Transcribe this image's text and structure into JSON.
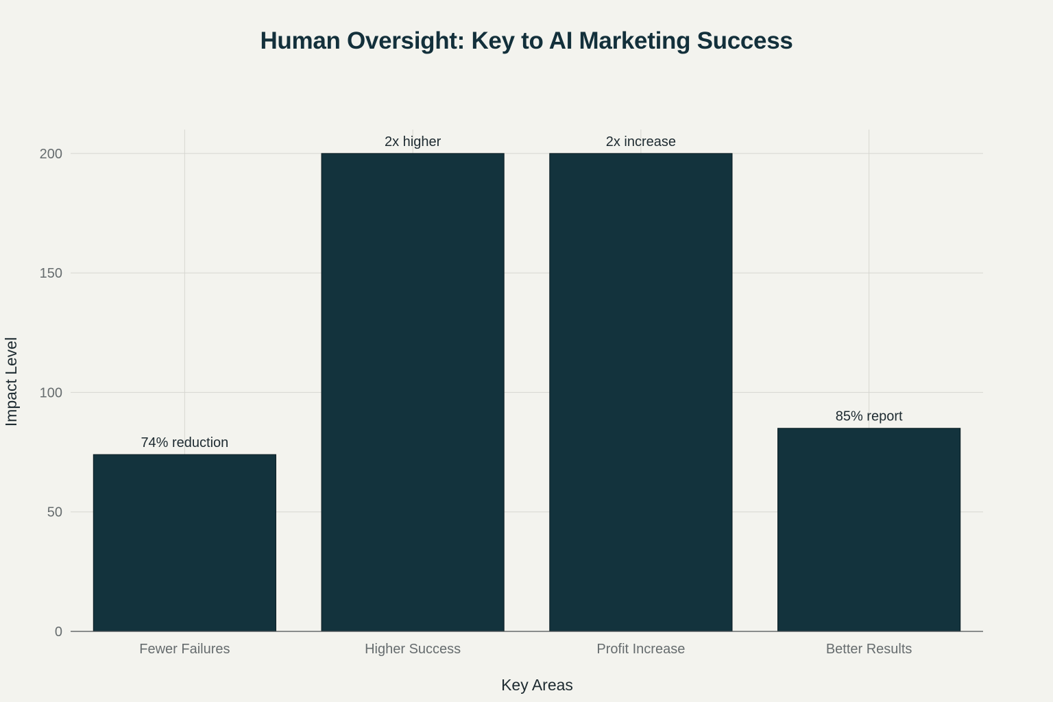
{
  "chart_data": {
    "type": "bar",
    "title": "Human Oversight: Key to AI Marketing Success",
    "xlabel": "Key Areas",
    "ylabel": "Impact Level",
    "categories": [
      "Fewer Failures",
      "Higher Success",
      "Profit Increase",
      "Better Results"
    ],
    "values": [
      74,
      200,
      200,
      85
    ],
    "data_labels": [
      "74% reduction",
      "2x higher",
      "2x increase",
      "85% report"
    ],
    "ylim": [
      0,
      210
    ],
    "yticks": [
      0,
      50,
      100,
      150,
      200
    ],
    "grid": true,
    "bar_color": "#13333d",
    "background_color": "#f3f3ee"
  }
}
